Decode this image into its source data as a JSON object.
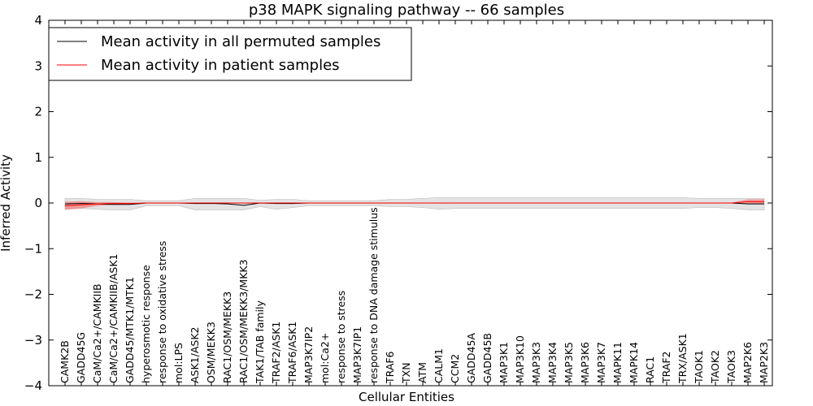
{
  "chart_data": {
    "type": "line",
    "title": "p38 MAPK signaling pathway -- 66 samples",
    "xlabel": "Cellular Entities",
    "ylabel": "Inferred Activity",
    "ylim": [
      -4,
      4
    ],
    "yticks": [
      "−4",
      "−3",
      "−2",
      "−1",
      "0",
      "1",
      "2",
      "3",
      "4"
    ],
    "yticks_values": [
      -4,
      -3,
      -2,
      -1,
      0,
      1,
      2,
      3,
      4
    ],
    "categories": [
      "CAMK2B",
      "GADD45G",
      "CaM/Ca2+/CAMKIIB",
      "CaM/Ca2+/CAMKIIB/ASK1",
      "GADD45/MTK1/MTK1",
      "hyperosmotic response",
      "response to oxidative stress",
      "mol:LPS",
      "ASK1/ASK2",
      "OSM/MEKK3",
      "RAC1/OSM/MEKK3",
      "RAC1/OSM/MEKK3/MKK3",
      "TAK1/TAB family",
      "TRAF2/ASK1",
      "TRAF6/ASK1",
      "MAP3K7IP2",
      "mol:Ca2+",
      "response to stress",
      "MAP3K7IP1",
      "response to DNA damage stimulus",
      "TRAF6",
      "TXN",
      "ATM",
      "CALM1",
      "CCM2",
      "GADD45A",
      "GADD45B",
      "MAP3K1",
      "MAP3K10",
      "MAP3K3",
      "MAP3K4",
      "MAP3K5",
      "MAP3K6",
      "MAP3K7",
      "MAPK11",
      "MAPK14",
      "RAC1",
      "TRAF2",
      "TRX/ASK1",
      "TAOK1",
      "TAOK2",
      "TAOK3",
      "MAP2K6",
      "MAP2K3"
    ],
    "series": [
      {
        "name": "Mean activity in all permuted samples",
        "color": "#000000",
        "values": [
          -0.02,
          -0.01,
          -0.02,
          -0.03,
          -0.03,
          0.0,
          0.0,
          0.0,
          -0.01,
          -0.01,
          -0.02,
          -0.05,
          0.0,
          -0.01,
          -0.01,
          0.0,
          0.0,
          0.0,
          0.0,
          0.0,
          0.0,
          0.0,
          0.0,
          0.0,
          0.0,
          0.0,
          0.0,
          0.0,
          0.0,
          0.0,
          0.0,
          0.0,
          0.0,
          0.0,
          0.0,
          0.0,
          0.0,
          0.0,
          0.0,
          0.0,
          0.0,
          0.0,
          -0.02,
          -0.02
        ],
        "band_low": [
          -0.12,
          -0.12,
          -0.14,
          -0.15,
          -0.15,
          -0.06,
          -0.06,
          -0.06,
          -0.15,
          -0.15,
          -0.15,
          -0.15,
          -0.08,
          -0.14,
          -0.1,
          -0.06,
          -0.06,
          -0.06,
          -0.06,
          -0.06,
          -0.08,
          -0.08,
          -0.1,
          -0.14,
          -0.12,
          -0.12,
          -0.12,
          -0.12,
          -0.12,
          -0.12,
          -0.12,
          -0.12,
          -0.12,
          -0.12,
          -0.12,
          -0.12,
          -0.12,
          -0.12,
          -0.12,
          -0.1,
          -0.1,
          -0.12,
          -0.15,
          -0.15
        ],
        "band_high": [
          0.1,
          0.1,
          0.08,
          0.08,
          0.08,
          0.05,
          0.05,
          0.05,
          0.1,
          0.1,
          0.1,
          0.1,
          0.06,
          0.08,
          0.08,
          0.05,
          0.05,
          0.05,
          0.05,
          0.05,
          0.08,
          0.08,
          0.1,
          0.12,
          0.12,
          0.12,
          0.12,
          0.12,
          0.12,
          0.12,
          0.12,
          0.12,
          0.12,
          0.12,
          0.12,
          0.12,
          0.12,
          0.12,
          0.12,
          0.1,
          0.1,
          0.1,
          0.1,
          0.1
        ]
      },
      {
        "name": "Mean activity in patient samples",
        "color": "#ff0000",
        "band_color": "#f08080",
        "values": [
          -0.06,
          -0.04,
          -0.02,
          -0.01,
          -0.01,
          0.0,
          0.0,
          0.0,
          0.0,
          0.0,
          0.0,
          0.0,
          0.0,
          0.0,
          0.0,
          0.0,
          0.0,
          0.0,
          0.0,
          0.0,
          0.0,
          0.0,
          0.0,
          0.0,
          0.0,
          0.0,
          0.0,
          0.0,
          0.0,
          0.0,
          0.0,
          0.0,
          0.0,
          0.0,
          0.0,
          0.0,
          0.0,
          0.0,
          0.0,
          0.0,
          0.0,
          0.0,
          0.03,
          0.03
        ],
        "band_low": [
          -0.15,
          -0.12,
          -0.06,
          -0.04,
          -0.03,
          -0.01,
          -0.01,
          -0.01,
          -0.01,
          -0.01,
          -0.01,
          -0.01,
          -0.01,
          -0.01,
          -0.01,
          -0.01,
          -0.01,
          -0.01,
          -0.01,
          -0.01,
          -0.01,
          -0.01,
          -0.01,
          -0.01,
          -0.01,
          -0.01,
          -0.01,
          -0.01,
          -0.01,
          -0.01,
          -0.01,
          -0.01,
          -0.01,
          -0.01,
          -0.01,
          -0.01,
          -0.01,
          -0.01,
          -0.01,
          -0.01,
          -0.01,
          -0.01,
          -0.02,
          -0.02
        ],
        "band_high": [
          0.03,
          0.04,
          0.02,
          0.02,
          0.01,
          0.01,
          0.01,
          0.01,
          0.01,
          0.01,
          0.01,
          0.01,
          0.01,
          0.01,
          0.01,
          0.01,
          0.01,
          0.01,
          0.01,
          0.01,
          0.01,
          0.01,
          0.01,
          0.01,
          0.01,
          0.01,
          0.01,
          0.01,
          0.01,
          0.01,
          0.01,
          0.01,
          0.01,
          0.01,
          0.01,
          0.01,
          0.01,
          0.01,
          0.01,
          0.01,
          0.01,
          0.01,
          0.08,
          0.08
        ]
      }
    ],
    "legend": "top-left",
    "grid": false
  }
}
